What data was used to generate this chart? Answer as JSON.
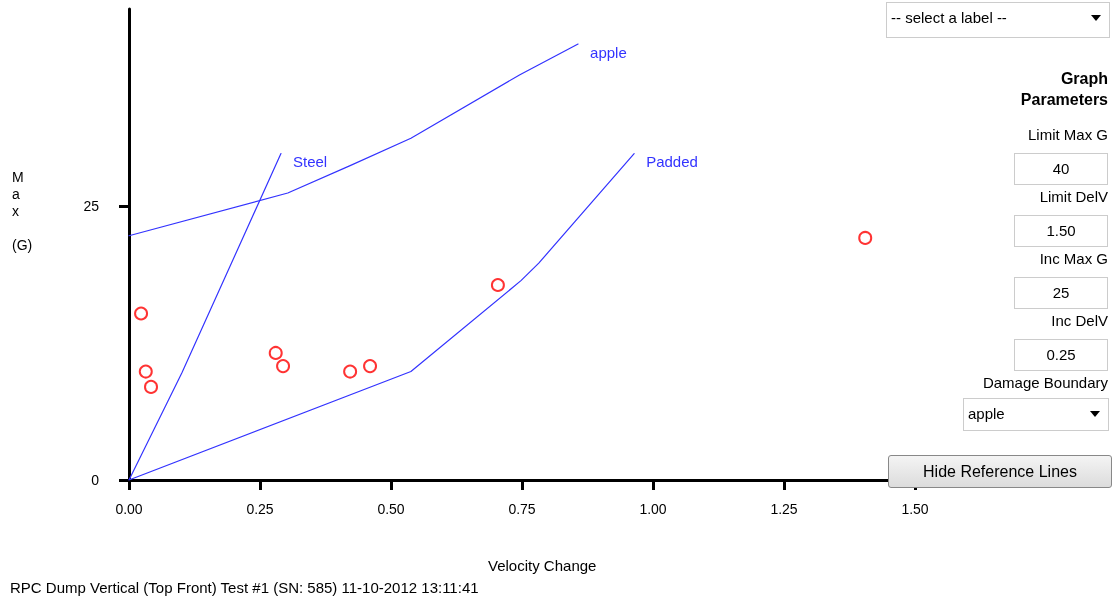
{
  "chart_data": [
    {
      "type": "scatter",
      "xlabel": "Velocity Change",
      "ylabel": "Max (G)",
      "xlim": [
        0,
        1.5
      ],
      "ylim": [
        0,
        43
      ],
      "xticks": [
        {
          "value": 0,
          "label": "0.00"
        },
        {
          "value": 0.25,
          "label": "0.25"
        },
        {
          "value": 0.5,
          "label": "0.50"
        },
        {
          "value": 0.75,
          "label": "0.75"
        },
        {
          "value": 1,
          "label": "1.00"
        },
        {
          "value": 1.25,
          "label": "1.25"
        },
        {
          "value": 1.5,
          "label": "1.50"
        }
      ],
      "yticks": [
        0,
        25
      ],
      "grid": false,
      "legend": false,
      "series": [
        {
          "type": "scatter",
          "marker": "circle",
          "color": "#ff0000",
          "x": [
            0.023,
            0.032,
            0.042,
            0.28,
            0.294,
            0.422,
            0.46,
            0.704,
            1.405
          ],
          "values": [
            15.2,
            9.9,
            8.5,
            11.6,
            10.4,
            9.9,
            10.4,
            17.8,
            22.1
          ]
        },
        {
          "type": "line",
          "name": "apple",
          "marker": "none",
          "color": "#3333ff",
          "x": [
            0,
            0.303,
            0.422,
            0.538,
            0.746,
            0.857
          ],
          "values": [
            22.3,
            26.2,
            28.7,
            31.2,
            37.0,
            39.8
          ]
        },
        {
          "type": "line",
          "name": "Steel",
          "marker": "none",
          "color": "#3333ff",
          "x": [
            0,
            0.101,
            0.29
          ],
          "values": [
            0,
            9.8,
            29.8
          ]
        },
        {
          "type": "line",
          "name": "Padded",
          "marker": "none",
          "color": "#3333ff",
          "x": [
            0,
            0.538,
            0.748,
            0.782,
            0.964
          ],
          "values": [
            0,
            9.9,
            18.2,
            19.8,
            29.8
          ]
        }
      ],
      "annotations": [
        "RPC Dump Vertical (Top Front) Test #1 (SN: 585) 11-10-2012 13:11:41"
      ]
    },
    {
      "type": "other",
      "title": "Graph Parameters",
      "annotations": [
        "-- select a label --",
        "Limit Max G",
        "40",
        "Limit DelV",
        "1.50",
        "Inc Max G",
        "25",
        "Inc DelV",
        "0.25",
        "Damage Boundary",
        "apple",
        "Hide Reference Lines"
      ]
    }
  ]
}
